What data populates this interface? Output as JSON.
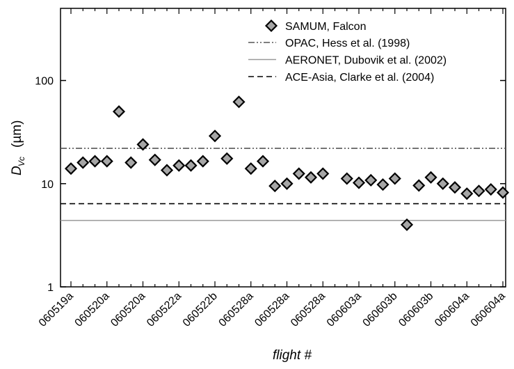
{
  "chart_data": {
    "type": "scatter",
    "ylabel": {
      "symbol": "D",
      "subscript": "Vc",
      "unit": "(µm)"
    },
    "xlabel": "flight #",
    "categories": [
      "060519a",
      null,
      null,
      "060520a",
      null,
      null,
      "060520a",
      null,
      null,
      "060522a",
      null,
      null,
      "060522b",
      null,
      null,
      "060528a",
      null,
      null,
      "060528a",
      null,
      null,
      "060528a",
      null,
      null,
      "060603a",
      null,
      null,
      "060603b",
      null,
      null,
      "060603b",
      null,
      null,
      "060604a",
      null,
      null,
      "060604a"
    ],
    "series": [
      {
        "name": "SAMUM, Falcon",
        "color": "#a6a6a6",
        "values": [
          14,
          16,
          16.5,
          16.5,
          50,
          16,
          24,
          17,
          13.5,
          15,
          15,
          16.5,
          29,
          17.5,
          62,
          14,
          16.5,
          9.5,
          10,
          12.5,
          11.5,
          12.5,
          null,
          11.2,
          10.2,
          10.8,
          9.8,
          11.2,
          4.0,
          9.6,
          11.5,
          10,
          9.2,
          8.0,
          8.5,
          8.8,
          8.2
        ]
      }
    ],
    "reference_lines": [
      {
        "name": "OPAC, Hess et al. (1998)",
        "value": 22,
        "color": "#555555",
        "style": "dashdotdot"
      },
      {
        "name": "AERONET, Dubovik et al. (2002)",
        "value": 4.4,
        "color": "#999999",
        "style": "solid"
      },
      {
        "name": "ACE-Asia, Clarke et al. (2004)",
        "value": 6.4,
        "color": "#000000",
        "style": "dashed"
      }
    ],
    "ylim": [
      1,
      500
    ],
    "yticks": [
      1,
      10,
      100
    ],
    "log_y": true,
    "legend": "upper right"
  }
}
